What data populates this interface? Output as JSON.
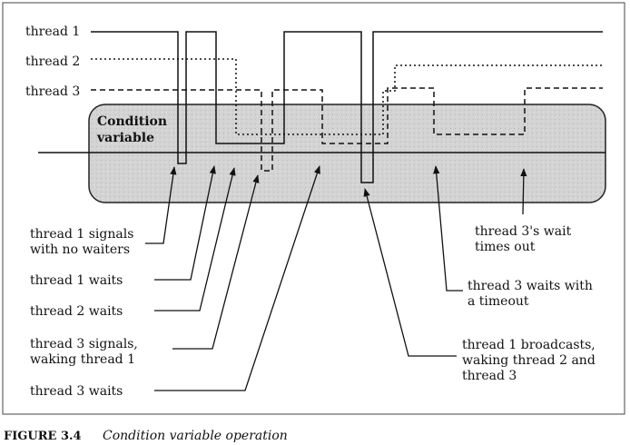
{
  "threads": [
    {
      "label": "thread 1",
      "line_style": "solid"
    },
    {
      "label": "thread 2",
      "line_style": "dotted"
    },
    {
      "label": "thread 3",
      "line_style": "dashed"
    }
  ],
  "condition_variable": {
    "label_line1": "Condition",
    "label_line2": "variable"
  },
  "annotations": {
    "t1_signals": [
      "thread 1 signals",
      "with no waiters"
    ],
    "t1_waits": "thread 1 waits",
    "t2_waits": "thread 2 waits",
    "t3_signals": [
      "thread 3 signals,",
      "waking thread 1"
    ],
    "t3_waits": "thread 3 waits",
    "t1_broadcasts": [
      "thread 1 broadcasts,",
      "waking thread 2 and",
      "thread 3"
    ],
    "t3_timeout": [
      "thread 3 waits with",
      "a timeout"
    ],
    "t3_times_out": [
      "thread 3's wait",
      "times out"
    ]
  },
  "caption": {
    "number": "FIGURE 3.4",
    "text": "Condition variable operation"
  },
  "colors": {
    "box_fill": "#d2d2d2",
    "box_stroke": "#222222",
    "line": "#111111"
  }
}
